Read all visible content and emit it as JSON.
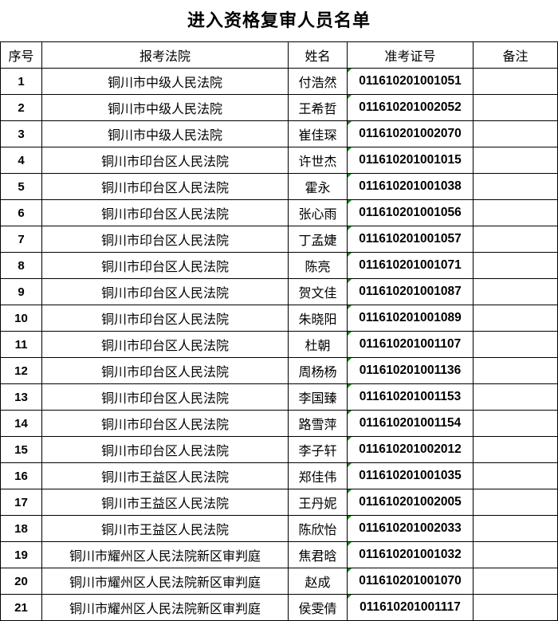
{
  "title": "进入资格复审人员名单",
  "headers": [
    "序号",
    "报考法院",
    "姓名",
    "准考证号",
    "备注"
  ],
  "rows": [
    {
      "no": "1",
      "court": "铜川市中级人民法院",
      "name": "付浩然",
      "id": "011610201001051",
      "note": ""
    },
    {
      "no": "2",
      "court": "铜川市中级人民法院",
      "name": "王希哲",
      "id": "011610201002052",
      "note": ""
    },
    {
      "no": "3",
      "court": "铜川市中级人民法院",
      "name": "崔佳琛",
      "id": "011610201002070",
      "note": ""
    },
    {
      "no": "4",
      "court": "铜川市印台区人民法院",
      "name": "许世杰",
      "id": "011610201001015",
      "note": ""
    },
    {
      "no": "5",
      "court": "铜川市印台区人民法院",
      "name": "霍永",
      "id": "011610201001038",
      "note": ""
    },
    {
      "no": "6",
      "court": "铜川市印台区人民法院",
      "name": "张心雨",
      "id": "011610201001056",
      "note": ""
    },
    {
      "no": "7",
      "court": "铜川市印台区人民法院",
      "name": "丁孟婕",
      "id": "011610201001057",
      "note": ""
    },
    {
      "no": "8",
      "court": "铜川市印台区人民法院",
      "name": "陈亮",
      "id": "011610201001071",
      "note": ""
    },
    {
      "no": "9",
      "court": "铜川市印台区人民法院",
      "name": "贺文佳",
      "id": "011610201001087",
      "note": ""
    },
    {
      "no": "10",
      "court": "铜川市印台区人民法院",
      "name": "朱晓阳",
      "id": "011610201001089",
      "note": ""
    },
    {
      "no": "11",
      "court": "铜川市印台区人民法院",
      "name": "杜朝",
      "id": "011610201001107",
      "note": ""
    },
    {
      "no": "12",
      "court": "铜川市印台区人民法院",
      "name": "周杨杨",
      "id": "011610201001136",
      "note": ""
    },
    {
      "no": "13",
      "court": "铜川市印台区人民法院",
      "name": "李国臻",
      "id": "011610201001153",
      "note": ""
    },
    {
      "no": "14",
      "court": "铜川市印台区人民法院",
      "name": "路雪萍",
      "id": "011610201001154",
      "note": ""
    },
    {
      "no": "15",
      "court": "铜川市印台区人民法院",
      "name": "李子轩",
      "id": "011610201002012",
      "note": ""
    },
    {
      "no": "16",
      "court": "铜川市王益区人民法院",
      "name": "郑佳伟",
      "id": "011610201001035",
      "note": ""
    },
    {
      "no": "17",
      "court": "铜川市王益区人民法院",
      "name": "王丹妮",
      "id": "011610201002005",
      "note": ""
    },
    {
      "no": "18",
      "court": "铜川市王益区人民法院",
      "name": "陈欣怡",
      "id": "011610201002033",
      "note": ""
    },
    {
      "no": "19",
      "court": "铜川市耀州区人民法院新区审判庭",
      "name": "焦君晗",
      "id": "011610201001032",
      "note": ""
    },
    {
      "no": "20",
      "court": "铜川市耀州区人民法院新区审判庭",
      "name": "赵成",
      "id": "011610201001070",
      "note": ""
    },
    {
      "no": "21",
      "court": "铜川市耀州区人民法院新区审判庭",
      "name": "侯雯倩",
      "id": "011610201001117",
      "note": ""
    }
  ]
}
